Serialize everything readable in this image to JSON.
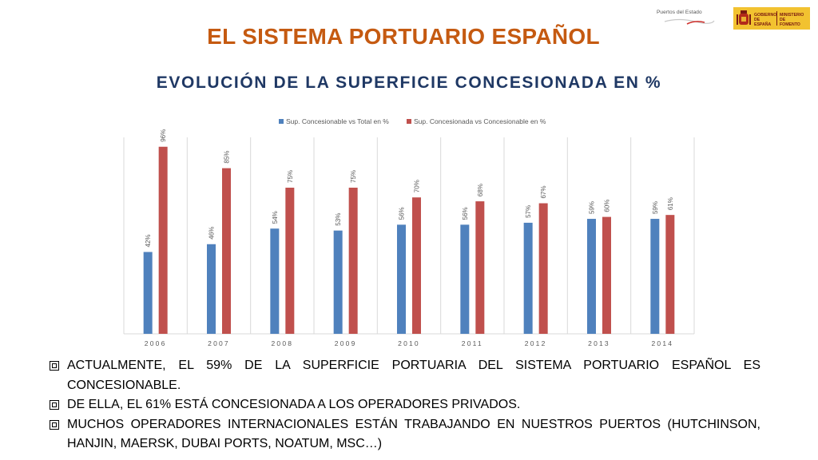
{
  "header": {
    "title": "EL SISTEMA PORTUARIO ESPAÑOL",
    "subtitle": "EVOLUCIÓN DE LA SUPERFICIE CONCESIONADA EN %"
  },
  "logos": {
    "puertos": "Puertos del Estado",
    "gobierno": "GOBIERNO DE ESPAÑA",
    "ministerio": "MINISTERIO DE FOMENTO"
  },
  "chart_data": {
    "type": "bar",
    "title": "",
    "xlabel": "",
    "ylabel": "",
    "categories": [
      "2006",
      "2007",
      "2008",
      "2009",
      "2010",
      "2011",
      "2012",
      "2013",
      "2014"
    ],
    "series": [
      {
        "name": "Sup. Concesionable vs Total en %",
        "color": "#4f81bd",
        "values": [
          42,
          46,
          54,
          53,
          56,
          56,
          57,
          59,
          59
        ],
        "labels": [
          "42%",
          "46%",
          "54%",
          "53%",
          "56%",
          "56%",
          "57%",
          "59%",
          "59%"
        ]
      },
      {
        "name": "Sup. Concesionada vs Concesionable en %",
        "color": "#c0504d",
        "values": [
          96,
          85,
          75,
          75,
          70,
          68,
          67,
          60,
          61
        ],
        "labels": [
          "96%",
          "85%",
          "75%",
          "75%",
          "70%",
          "68%",
          "67%",
          "60%",
          "61%"
        ]
      }
    ],
    "ylim": [
      0,
      100
    ],
    "grid": "vertical",
    "legend": "top-center"
  },
  "bullets": [
    "ACTUALMENTE, EL 59% DE LA SUPERFICIE PORTUARIA DEL SISTEMA PORTUARIO ESPAÑOL ES CONCESIONABLE.",
    "DE ELLA, EL 61% ESTÁ CONCESIONADA A LOS OPERADORES PRIVADOS.",
    "MUCHOS OPERADORES INTERNACIONALES ESTÁN TRABAJANDO EN NUESTROS PUERTOS  (HUTCHINSON, HANJIN, MAERSK, DUBAI PORTS, NOATUM, MSC…)"
  ]
}
